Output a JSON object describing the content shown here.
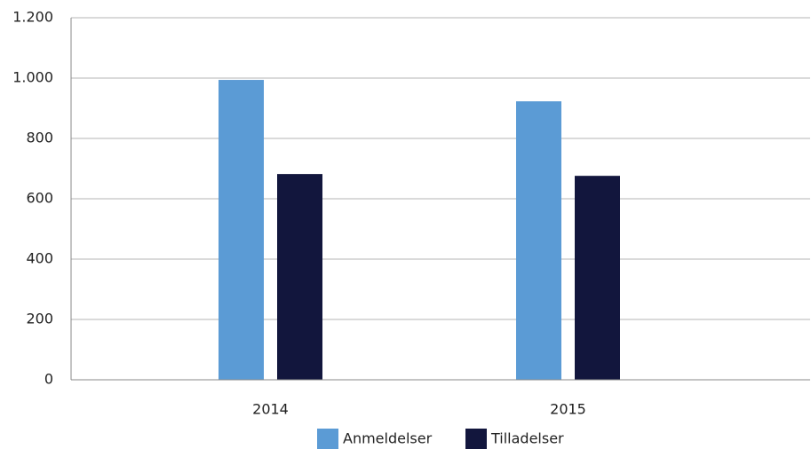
{
  "chart_data": {
    "type": "bar",
    "categories": [
      "2014",
      "2015"
    ],
    "series": [
      {
        "name": "Anmeldelser",
        "color": "#5b9bd5",
        "values": [
          994,
          923
        ]
      },
      {
        "name": "Tilladelser",
        "color": "#12163d",
        "values": [
          682,
          676
        ]
      }
    ],
    "ylim": [
      0,
      1200
    ],
    "yticks": [
      0,
      200,
      400,
      600,
      800,
      {
        "value": 1000,
        "label": "1.000"
      },
      {
        "value": 1200,
        "label": "1.200"
      }
    ],
    "grid": true,
    "legend": "bottom"
  }
}
